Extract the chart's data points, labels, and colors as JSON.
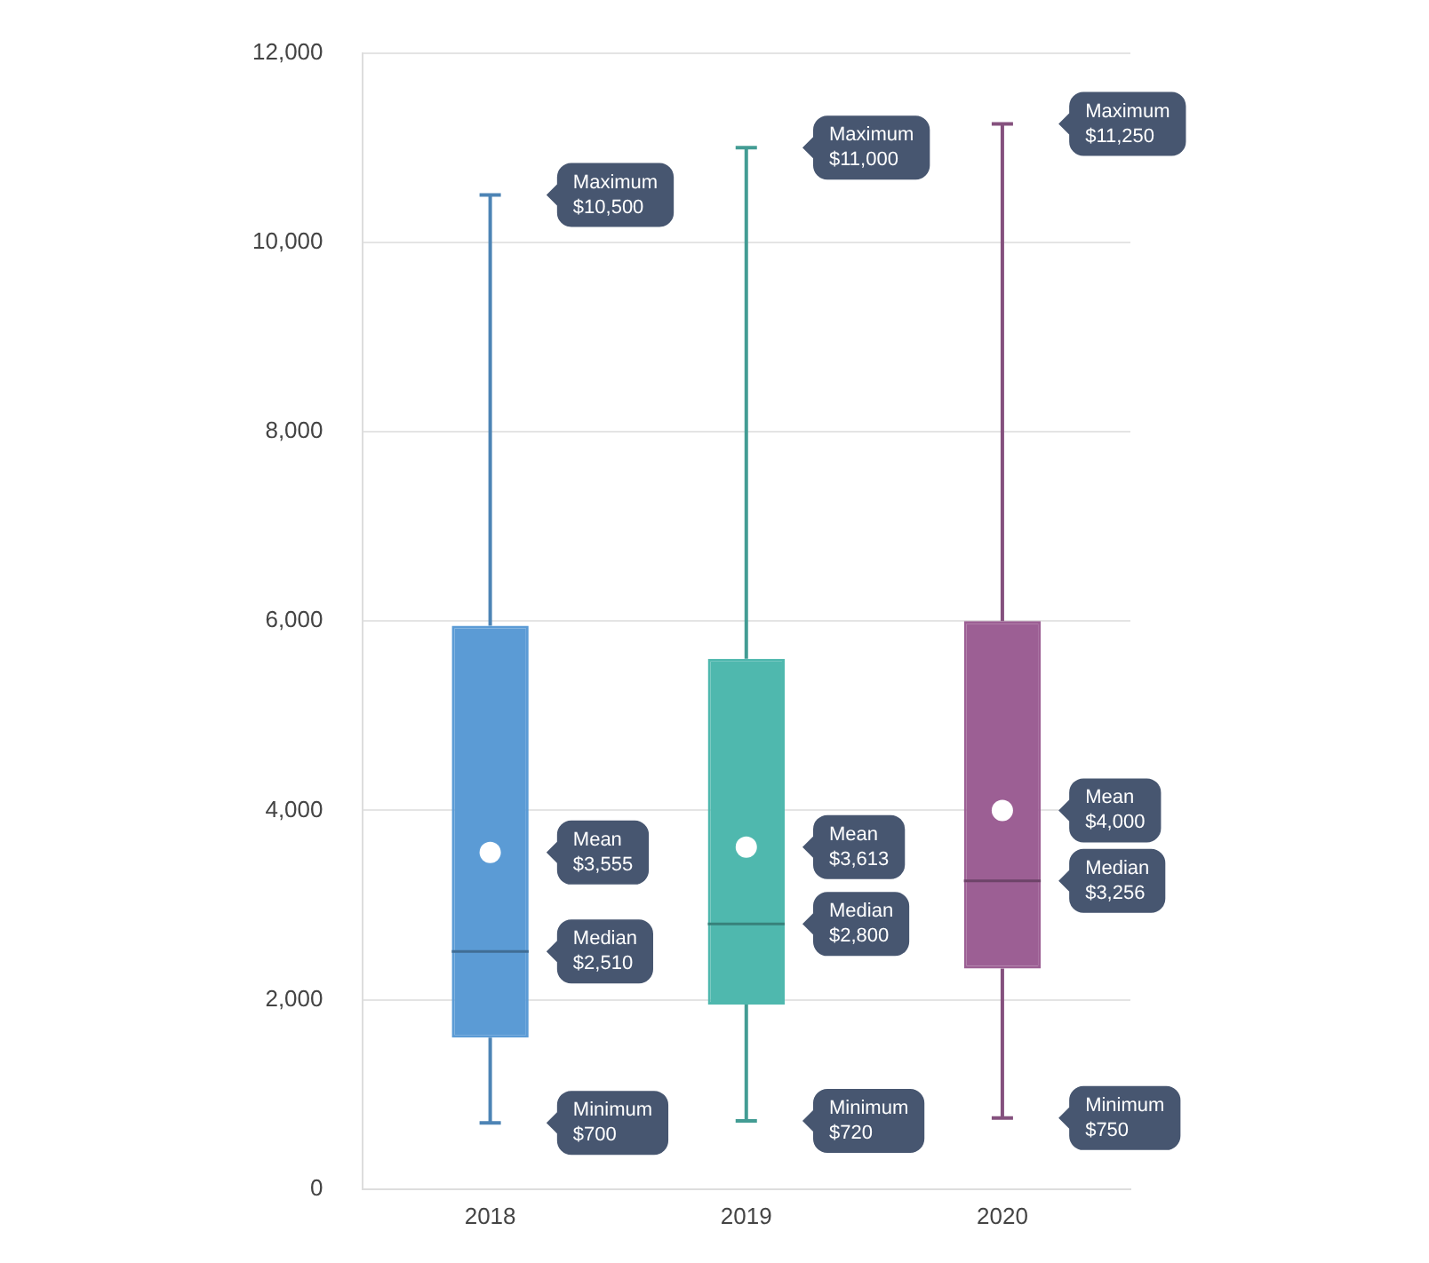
{
  "chart_data": {
    "type": "box",
    "categories": [
      "2018",
      "2019",
      "2020"
    ],
    "colors": [
      "#5b9bd5",
      "#4fb8ae",
      "#9c5f94"
    ],
    "boxes": [
      {
        "low": 700,
        "q1": 1600,
        "median": 2510,
        "q3": 5950,
        "high": 10500,
        "mean": 3555
      },
      {
        "low": 720,
        "q1": 1950,
        "median": 2800,
        "q3": 5600,
        "high": 11000,
        "mean": 3613
      },
      {
        "low": 750,
        "q1": 2330,
        "median": 3256,
        "q3": 6000,
        "high": 11250,
        "mean": 4000
      }
    ],
    "ylim": [
      0,
      12000
    ],
    "yticks": [
      {
        "value": 0,
        "label": "0"
      },
      {
        "value": 2000,
        "label": "2,000"
      },
      {
        "value": 4000,
        "label": "4,000"
      },
      {
        "value": 6000,
        "label": "6,000"
      },
      {
        "value": 8000,
        "label": "8,000"
      },
      {
        "value": 10000,
        "label": "10,000"
      },
      {
        "value": 12000,
        "label": "12,000"
      }
    ],
    "grid": "y",
    "legend": false,
    "annotations": [
      "Maximum\n$10,500",
      "Mean\n$3,555",
      "Median\n$2,510",
      "Minimum\n$700",
      "Maximum\n$11,000",
      "Mean\n$3,613",
      "Median\n$2,800",
      "Minimum\n$720",
      "Maximum\n$11,250",
      "Mean\n$4,000",
      "Median\n$3,256",
      "Minimum\n$750"
    ]
  }
}
